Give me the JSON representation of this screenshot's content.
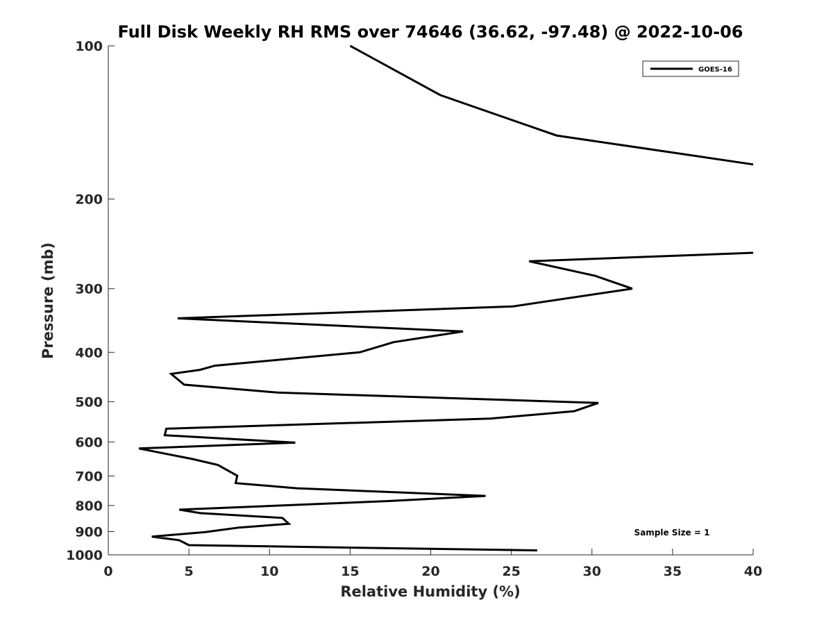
{
  "chart_data": {
    "type": "line",
    "title": "Full Disk Weekly RH RMS over 74646 (36.62, -97.48) @ 2022-10-06",
    "xlabel": "Relative Humidity (%)",
    "ylabel": "Pressure (mb)",
    "xlim": [
      0,
      40
    ],
    "ylim": [
      100,
      1000
    ],
    "y_scale": "log",
    "y_reversed": true,
    "grid": false,
    "x_ticks": [
      0,
      5,
      10,
      15,
      20,
      25,
      30,
      35,
      40
    ],
    "y_ticks": [
      100,
      200,
      300,
      400,
      500,
      600,
      700,
      800,
      900,
      1000
    ],
    "legend": {
      "position": "top-right",
      "entries": [
        "GOES-16"
      ]
    },
    "annotations": [
      "Sample Size = 1"
    ],
    "series": [
      {
        "name": "GOES-16",
        "color": "#000000",
        "segments": [
          {
            "x": [
              15.0,
              20.6,
              27.8,
              40.0
            ],
            "y": [
              100,
              125,
              150,
              171
            ]
          },
          {
            "x": [
              40.0,
              26.1,
              30.2,
              32.5,
              25.1,
              4.3,
              22.0,
              17.7,
              15.6,
              6.6,
              5.7,
              3.9,
              4.7,
              10.5,
              30.4,
              28.9,
              23.7,
              3.6,
              3.5,
              11.6,
              1.9,
              5.2,
              6.8,
              8.0,
              7.9,
              11.7,
              23.4,
              17.4,
              4.4,
              5.7,
              10.8,
              11.2,
              8.1,
              6.0,
              2.7,
              4.4,
              5.0,
              26.6
            ],
            "y": [
              255,
              265,
              283,
              300,
              325,
              343,
              364,
              382,
              400,
              425,
              433,
              441,
              463,
              480,
              503,
              522,
              540,
              565,
              582,
              602,
              618,
              648,
              666,
              699,
              723,
              740,
              766,
              784,
              815,
              828,
              846,
              869,
              884,
              902,
              921,
              936,
              957,
              980
            ]
          }
        ]
      }
    ]
  }
}
